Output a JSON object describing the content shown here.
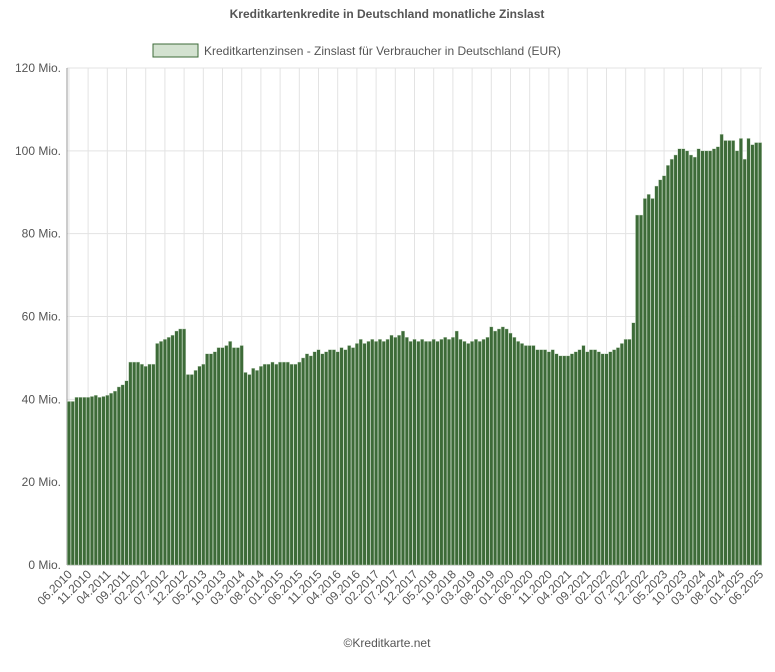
{
  "chart_data": {
    "type": "bar",
    "title": "Kreditkartenkredite in Deutschland monatliche Zinslast",
    "source": "©Kreditkarte.net",
    "legend": "top",
    "grid": true,
    "ylim": [
      0,
      120
    ],
    "yticks": [
      {
        "value": 0,
        "label": "0 Mio."
      },
      {
        "value": 20,
        "label": "20 Mio."
      },
      {
        "value": 40,
        "label": "40 Mio."
      },
      {
        "value": 60,
        "label": "60 Mio."
      },
      {
        "value": 80,
        "label": "80 Mio."
      },
      {
        "value": 100,
        "label": "100 Mio."
      },
      {
        "value": 120,
        "label": "120 Mio."
      }
    ],
    "categories": [
      "06.2010",
      null,
      null,
      null,
      null,
      "11.2010",
      null,
      null,
      null,
      null,
      "04.2011",
      null,
      null,
      null,
      null,
      "09.2011",
      null,
      null,
      null,
      null,
      "02.2012",
      null,
      null,
      null,
      null,
      "07.2012",
      null,
      null,
      null,
      null,
      "12.2012",
      null,
      null,
      null,
      null,
      "05.2013",
      null,
      null,
      null,
      null,
      "10.2013",
      null,
      null,
      null,
      null,
      "03.2014",
      null,
      null,
      null,
      null,
      "08.2014",
      null,
      null,
      null,
      null,
      "01.2015",
      null,
      null,
      null,
      null,
      "06.2015",
      null,
      null,
      null,
      null,
      "11.2015",
      null,
      null,
      null,
      null,
      "04.2016",
      null,
      null,
      null,
      null,
      "09.2016",
      null,
      null,
      null,
      null,
      "02.2017",
      null,
      null,
      null,
      null,
      "07.2017",
      null,
      null,
      null,
      null,
      "12.2017",
      null,
      null,
      null,
      null,
      "05.2018",
      null,
      null,
      null,
      null,
      "10.2018",
      null,
      null,
      null,
      null,
      "03.2019",
      null,
      null,
      null,
      null,
      "08.2019",
      null,
      null,
      null,
      null,
      "01.2020",
      null,
      null,
      null,
      null,
      "06.2020",
      null,
      null,
      null,
      null,
      "11.2020",
      null,
      null,
      null,
      null,
      "04.2021",
      null,
      null,
      null,
      null,
      "09.2021",
      null,
      null,
      null,
      null,
      "02.2022",
      null,
      null,
      null,
      null,
      "07.2022",
      null,
      null,
      null,
      null,
      "12.2022",
      null,
      null,
      null,
      null,
      "05.2023",
      null,
      null,
      null,
      null,
      "10.2023",
      null,
      null,
      null,
      null,
      "03.2024",
      null,
      null,
      null,
      null,
      "08.2024",
      null,
      null,
      null,
      null,
      "01.2025",
      null,
      null,
      null,
      null,
      "06.2025"
    ],
    "series": [
      {
        "name": "Kreditkartenzinsen - Zinslast für Verbraucher in Deutschland (EUR)",
        "color": "#3d6b38",
        "legend_fill": "#d3e2d0",
        "values": [
          39.5,
          39.5,
          40.5,
          40.5,
          40.5,
          40.5,
          40.7,
          41,
          40.5,
          40.7,
          41,
          41.5,
          42,
          43,
          43.5,
          44.5,
          49,
          49,
          49,
          48.5,
          48,
          48.5,
          48.5,
          53.5,
          54,
          54.5,
          55,
          55.5,
          56.5,
          57,
          57,
          46,
          46,
          47,
          48,
          48.5,
          51,
          51,
          51.5,
          52.5,
          52.5,
          53,
          54,
          52.5,
          52.5,
          53,
          46.5,
          46,
          47.5,
          47,
          48,
          48.5,
          48.5,
          49,
          48.5,
          49,
          49,
          49,
          48.5,
          48.5,
          49,
          50,
          51,
          50.5,
          51.5,
          52,
          51,
          51.5,
          52,
          52,
          51.5,
          52.5,
          52,
          53,
          52.5,
          53.5,
          54.5,
          53.5,
          54,
          54.5,
          54,
          54.5,
          54,
          54.5,
          55.5,
          55,
          55.5,
          56.5,
          55,
          54,
          54.5,
          54,
          54.5,
          54,
          54,
          54.5,
          54,
          54.5,
          55,
          54.5,
          55,
          56.5,
          54.5,
          54,
          53.5,
          54,
          54.5,
          54,
          54.5,
          55,
          57.5,
          56.5,
          57,
          57.5,
          57,
          56,
          55,
          54,
          53.5,
          53,
          53,
          53,
          52,
          52,
          52,
          51.5,
          52,
          51,
          50.5,
          50.5,
          50.5,
          51,
          51.5,
          52,
          53,
          51.5,
          52,
          52,
          51.5,
          51,
          51,
          51.5,
          52,
          52.5,
          53.5,
          54.5,
          54.5,
          58.5,
          84.5,
          84.5,
          88.5,
          89.5,
          88.5,
          91.5,
          93,
          94,
          96.5,
          98,
          99,
          100.5,
          100.5,
          100,
          99,
          98.5,
          100.5,
          100,
          100,
          100,
          100.5,
          101,
          104,
          102.5,
          102.5,
          102.5,
          100,
          103,
          98,
          103,
          101.5,
          102,
          102
        ]
      }
    ]
  }
}
